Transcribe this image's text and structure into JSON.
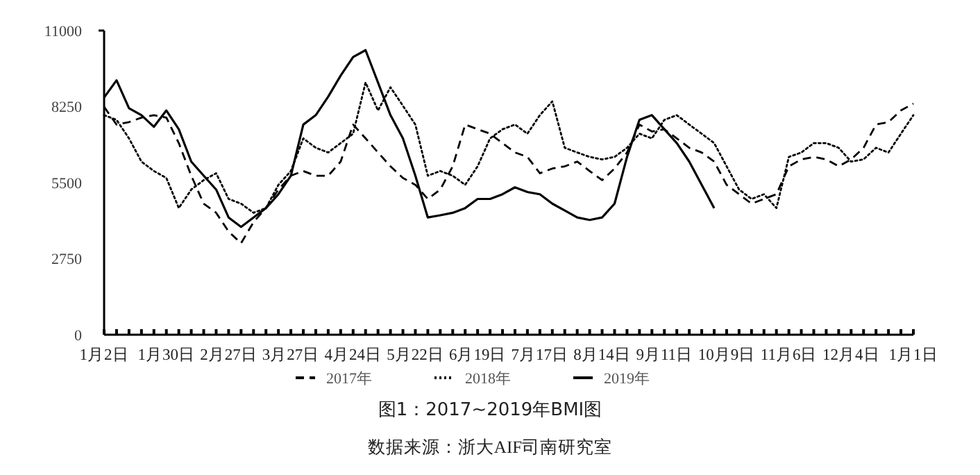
{
  "chart_data": {
    "type": "line",
    "title": "图1：2017~2019年BMI图",
    "annotations": [
      "数据来源：浙大AIF司南研究室"
    ],
    "categories": [
      "1月2日",
      null,
      null,
      null,
      null,
      "1月30日",
      null,
      null,
      null,
      null,
      "2月27日",
      null,
      null,
      null,
      null,
      "3月27日",
      null,
      null,
      null,
      null,
      "4月24日",
      null,
      null,
      null,
      null,
      "5月22日",
      null,
      null,
      null,
      null,
      "6月19日",
      null,
      null,
      null,
      null,
      "7月17日",
      null,
      null,
      null,
      null,
      "8月14日",
      null,
      null,
      null,
      null,
      "9月11日",
      null,
      null,
      null,
      null,
      "10月9日",
      null,
      null,
      null,
      null,
      "11月6日",
      null,
      null,
      null,
      null,
      "12月4日",
      null,
      null,
      null,
      null,
      "1月1日"
    ],
    "ylim": [
      0,
      11000
    ],
    "yticks": [
      0,
      2750,
      5500,
      8250,
      11000
    ],
    "grid": false,
    "legend": "bottom",
    "series": [
      {
        "name": "2017年",
        "color": "#000000",
        "line_style": "dashed",
        "values": [
          8240,
          7600,
          7690,
          7850,
          7940,
          7850,
          6930,
          5750,
          4740,
          4410,
          3730,
          3310,
          4070,
          4580,
          5250,
          5750,
          5920,
          5750,
          5750,
          6260,
          7600,
          7100,
          6590,
          6090,
          5670,
          5420,
          4910,
          5250,
          6090,
          7600,
          7430,
          7270,
          6930,
          6590,
          6430,
          5840,
          6010,
          6090,
          6260,
          5920,
          5590,
          6010,
          6590,
          7600,
          7350,
          7430,
          7100,
          6760,
          6590,
          6260,
          5420,
          5080,
          4740,
          4910,
          5080,
          6090,
          6340,
          6430,
          6340,
          6090,
          6340,
          6760,
          7600,
          7690,
          8110,
          8360
        ]
      },
      {
        "name": "2018年",
        "color": "#000000",
        "line_style": "dotted",
        "values": [
          7940,
          7770,
          7100,
          6260,
          5920,
          5670,
          4580,
          5250,
          5590,
          5840,
          4910,
          4740,
          4410,
          4580,
          5420,
          5920,
          7100,
          6760,
          6590,
          6930,
          7270,
          9120,
          8110,
          8950,
          8280,
          7600,
          5750,
          5920,
          5750,
          5420,
          6090,
          7100,
          7430,
          7600,
          7270,
          7940,
          8440,
          6760,
          6590,
          6430,
          6340,
          6430,
          6760,
          7270,
          7100,
          7770,
          7940,
          7600,
          7270,
          6930,
          6090,
          5250,
          4910,
          5080,
          4580,
          6430,
          6590,
          6930,
          6930,
          6760,
          6260,
          6340,
          6760,
          6590,
          7270,
          7940
        ]
      },
      {
        "name": "2019年",
        "color": "#000000",
        "line_style": "solid",
        "values": [
          8580,
          9200,
          8190,
          7940,
          7520,
          8110,
          7430,
          6260,
          5750,
          5250,
          4240,
          3900,
          4240,
          4580,
          5080,
          5750,
          7600,
          7940,
          8610,
          9370,
          10040,
          10290,
          9120,
          7940,
          7100,
          5750,
          4240,
          4320,
          4410,
          4580,
          4910,
          4910,
          5080,
          5330,
          5160,
          5080,
          4740,
          4490,
          4240,
          4150,
          4240,
          4740,
          6430,
          7770,
          7940,
          7430,
          6930,
          6260,
          5420,
          4580,
          null,
          null,
          null,
          null,
          null,
          null,
          null,
          null,
          null,
          null,
          null,
          null,
          null,
          null,
          null,
          null
        ]
      }
    ]
  }
}
